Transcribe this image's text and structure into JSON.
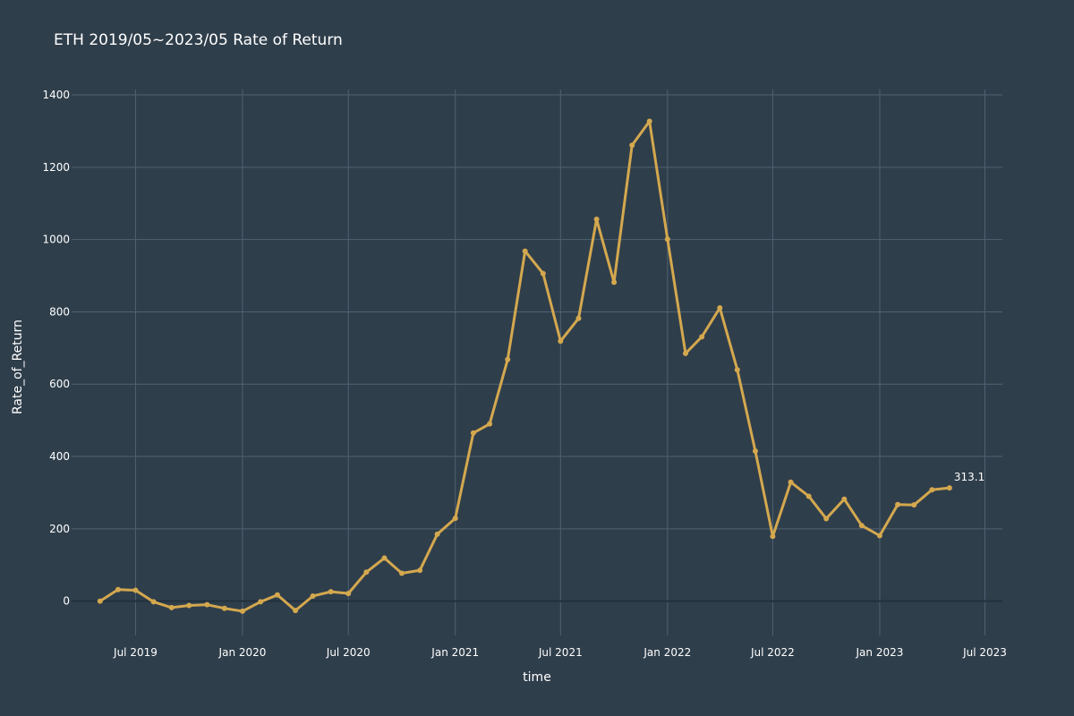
{
  "chart_data": {
    "type": "line",
    "title": "ETH 2019/05~2023/05 Rate of Return",
    "xlabel": "time",
    "ylabel": "Rate_of_Return",
    "xlim": [
      "2019-03-13",
      "2023-07-31"
    ],
    "ylim": [
      -95,
      1415
    ],
    "yticks": [
      0,
      200,
      400,
      600,
      800,
      1000,
      1200,
      1400
    ],
    "xticks": [
      {
        "date": "2019-07-01",
        "label": "Jul 2019"
      },
      {
        "date": "2020-01-01",
        "label": "Jan 2020"
      },
      {
        "date": "2020-07-01",
        "label": "Jul 2020"
      },
      {
        "date": "2021-01-01",
        "label": "Jan 2021"
      },
      {
        "date": "2021-07-01",
        "label": "Jul 2021"
      },
      {
        "date": "2022-01-01",
        "label": "Jan 2022"
      },
      {
        "date": "2022-07-01",
        "label": "Jul 2022"
      },
      {
        "date": "2023-01-01",
        "label": "Jan 2023"
      },
      {
        "date": "2023-07-01",
        "label": "Jul 2023"
      }
    ],
    "grid": true,
    "colors": {
      "background": "#2f3e4b",
      "grid": "#4f6272",
      "zero_line": "#22313d",
      "series": "#d4a84f"
    },
    "series": [
      {
        "x": [
          "2019-05-01",
          "2019-06-01",
          "2019-07-01",
          "2019-08-01",
          "2019-09-01",
          "2019-10-01",
          "2019-11-01",
          "2019-12-01",
          "2020-01-01",
          "2020-02-01",
          "2020-03-01",
          "2020-04-01",
          "2020-05-01",
          "2020-06-01",
          "2020-07-01",
          "2020-08-01",
          "2020-09-01",
          "2020-10-01",
          "2020-11-01",
          "2020-12-01",
          "2021-01-01",
          "2021-02-01",
          "2021-03-01",
          "2021-04-01",
          "2021-05-01",
          "2021-06-01",
          "2021-07-01",
          "2021-08-01",
          "2021-09-01",
          "2021-10-01",
          "2021-11-01",
          "2021-12-01",
          "2022-01-01",
          "2022-02-01",
          "2022-03-01",
          "2022-04-01",
          "2022-05-01",
          "2022-06-01",
          "2022-07-01",
          "2022-08-01",
          "2022-09-01",
          "2022-10-01",
          "2022-11-01",
          "2022-12-01",
          "2023-01-01",
          "2023-02-01",
          "2023-03-01",
          "2023-04-01",
          "2023-05-01"
        ],
        "y": [
          0,
          32,
          30,
          -2,
          -18,
          -12,
          -10,
          -20,
          -28,
          -2,
          17,
          -26,
          14,
          26,
          21,
          80,
          119,
          77,
          85,
          185,
          229,
          465,
          490,
          668,
          968,
          906,
          719,
          782,
          1056,
          882,
          1261,
          1327,
          1001,
          685,
          731,
          811,
          640,
          415,
          179,
          329,
          290,
          228,
          282,
          209,
          181,
          267,
          266,
          308,
          313.1
        ],
        "end_label": "313.1"
      }
    ]
  }
}
